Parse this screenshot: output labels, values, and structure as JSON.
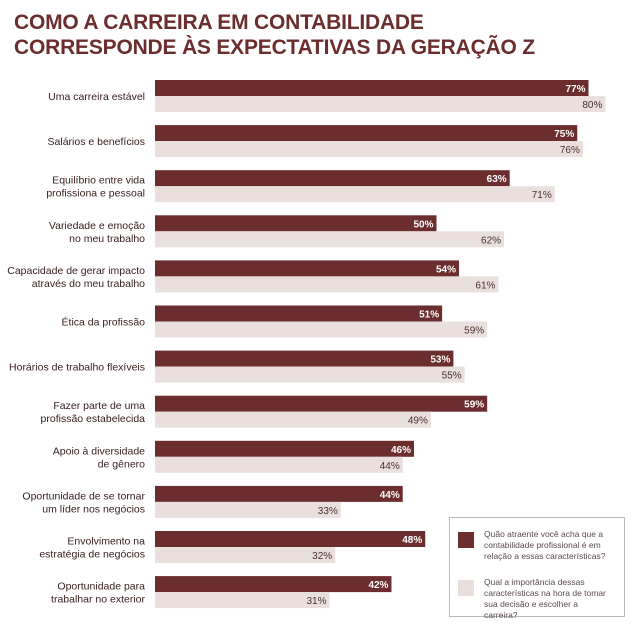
{
  "title_lines": [
    "COMO A CARREIRA EM CONTABILIDADE",
    "CORRESPONDE ÀS EXPECTATIVAS DA GERAÇÃO Z"
  ],
  "colors": {
    "title": "#6b2d2d",
    "series_dark": "#6b2d2d",
    "series_light": "#e9dfdc"
  },
  "legend": [
    {
      "text": "Quão atraente você acha que a contabilidade profissional é em relação a essas características?",
      "color": "#6b2d2d"
    },
    {
      "text": "Qual a importância dessas características na hora de tomar sua decisão e escolher a carreira?",
      "color": "#e9dfdc"
    }
  ],
  "chart_data": {
    "type": "bar",
    "orientation": "horizontal",
    "title": "COMO A CARREIRA EM CONTABILIDADE CORRESPONDE ÀS EXPECTATIVAS DA GERAÇÃO Z",
    "categories": [
      [
        "Uma carreira estável"
      ],
      [
        "Salários e benefícios"
      ],
      [
        "Equilíbrio entre vida",
        "profissiona e pessoal"
      ],
      [
        "Variedade e emoção",
        "no meu trabalho"
      ],
      [
        "Capacidade de gerar impacto",
        "através do meu trabalho"
      ],
      [
        "Ética da profissão"
      ],
      [
        "Horários de trabalho flexíveis"
      ],
      [
        "Fazer parte de uma",
        "profissão estabelecida"
      ],
      [
        "Apoio à diversidade",
        "de gênero"
      ],
      [
        "Oportunidade de se tornar",
        "um líder nos negócios"
      ],
      [
        "Envolvimento na",
        "estratégia de negócios"
      ],
      [
        "Oportunidade para",
        "trabalhar no exterior"
      ]
    ],
    "series": [
      {
        "values": [
          77,
          75,
          63,
          50,
          54,
          51,
          53,
          59,
          46,
          44,
          48,
          42
        ],
        "labels": [
          "77%",
          "75%",
          "63%",
          "50%",
          "54%",
          "51%",
          "53%",
          "59%",
          "46%",
          "44%",
          "48%",
          "42%"
        ]
      },
      {
        "values": [
          80,
          76,
          71,
          62,
          61,
          59,
          55,
          49,
          44,
          33,
          32,
          31
        ],
        "labels": [
          "80%",
          "76%",
          "71%",
          "62%",
          "61%",
          "59%",
          "55%",
          "49%",
          "44%",
          "33%",
          "32%",
          "31%"
        ]
      }
    ],
    "xlim": [
      0,
      100
    ],
    "grid": false
  }
}
